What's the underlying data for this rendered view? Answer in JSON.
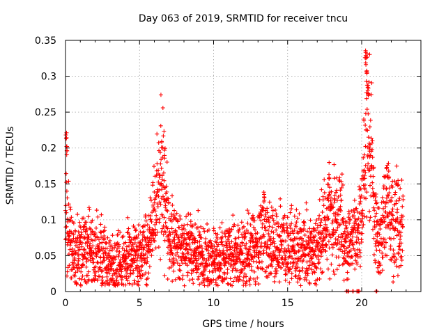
{
  "chart_data": {
    "type": "scatter",
    "title": "Day 063 of 2019, SRMTID for receiver tncu",
    "xlabel": "GPS time / hours",
    "ylabel": "SRMTID / TECUs",
    "xlim": [
      0,
      24
    ],
    "ylim": [
      0,
      0.35
    ],
    "x_ticks": [
      0,
      5,
      10,
      15,
      20
    ],
    "y_ticks": [
      0,
      0.05,
      0.1,
      0.15,
      0.2,
      0.25,
      0.3,
      0.35
    ],
    "x_tick_labels": [
      "0",
      "5",
      "10",
      "15",
      "20"
    ],
    "y_tick_labels": [
      "0",
      "0.05",
      "0.1",
      "0.15",
      "0.2",
      "0.25",
      "0.3",
      "0.35"
    ],
    "grid": true,
    "marker": "plus",
    "marker_color": "#ff0000",
    "series": [
      {
        "name": "SRMTID",
        "trend": [
          [
            0.0,
            0.06
          ],
          [
            0.05,
            0.14
          ],
          [
            0.15,
            0.1
          ],
          [
            0.4,
            0.06
          ],
          [
            1.0,
            0.065
          ],
          [
            1.5,
            0.06
          ],
          [
            2.0,
            0.055
          ],
          [
            2.5,
            0.05
          ],
          [
            3.0,
            0.035
          ],
          [
            3.5,
            0.045
          ],
          [
            4.0,
            0.045
          ],
          [
            4.5,
            0.05
          ],
          [
            5.0,
            0.05
          ],
          [
            5.5,
            0.06
          ],
          [
            6.0,
            0.1
          ],
          [
            6.5,
            0.16
          ],
          [
            6.8,
            0.11
          ],
          [
            7.0,
            0.08
          ],
          [
            7.5,
            0.07
          ],
          [
            8.0,
            0.06
          ],
          [
            8.5,
            0.06
          ],
          [
            9.0,
            0.05
          ],
          [
            9.5,
            0.045
          ],
          [
            10.0,
            0.045
          ],
          [
            10.5,
            0.05
          ],
          [
            11.0,
            0.05
          ],
          [
            11.5,
            0.05
          ],
          [
            12.0,
            0.055
          ],
          [
            12.5,
            0.06
          ],
          [
            13.0,
            0.065
          ],
          [
            13.3,
            0.09
          ],
          [
            13.6,
            0.07
          ],
          [
            14.0,
            0.06
          ],
          [
            14.5,
            0.065
          ],
          [
            15.0,
            0.065
          ],
          [
            15.5,
            0.06
          ],
          [
            16.0,
            0.06
          ],
          [
            16.5,
            0.055
          ],
          [
            17.0,
            0.06
          ],
          [
            17.5,
            0.09
          ],
          [
            18.0,
            0.1
          ],
          [
            18.5,
            0.1
          ],
          [
            19.0,
            0.07
          ],
          [
            19.5,
            0.075
          ],
          [
            20.0,
            0.1
          ],
          [
            20.2,
            0.18
          ],
          [
            20.35,
            0.26
          ],
          [
            20.5,
            0.2
          ],
          [
            20.65,
            0.17
          ],
          [
            20.9,
            0.1
          ],
          [
            21.2,
            0.07
          ],
          [
            21.5,
            0.1
          ],
          [
            21.8,
            0.12
          ],
          [
            22.0,
            0.09
          ],
          [
            22.5,
            0.1
          ],
          [
            22.8,
            0.1
          ]
        ],
        "peaks": [
          [
            0.05,
            0.225
          ],
          [
            0.1,
            0.205
          ],
          [
            6.5,
            0.213
          ],
          [
            6.7,
            0.2
          ],
          [
            13.4,
            0.14
          ],
          [
            17.8,
            0.17
          ],
          [
            20.25,
            0.34
          ],
          [
            20.3,
            0.33
          ],
          [
            20.35,
            0.315
          ],
          [
            20.4,
            0.29
          ],
          [
            20.45,
            0.285
          ],
          [
            20.55,
            0.2
          ],
          [
            21.7,
            0.175
          ]
        ],
        "zero_values": [
          19.0,
          19.1,
          19.4,
          19.7,
          19.8,
          21.0
        ]
      }
    ]
  }
}
